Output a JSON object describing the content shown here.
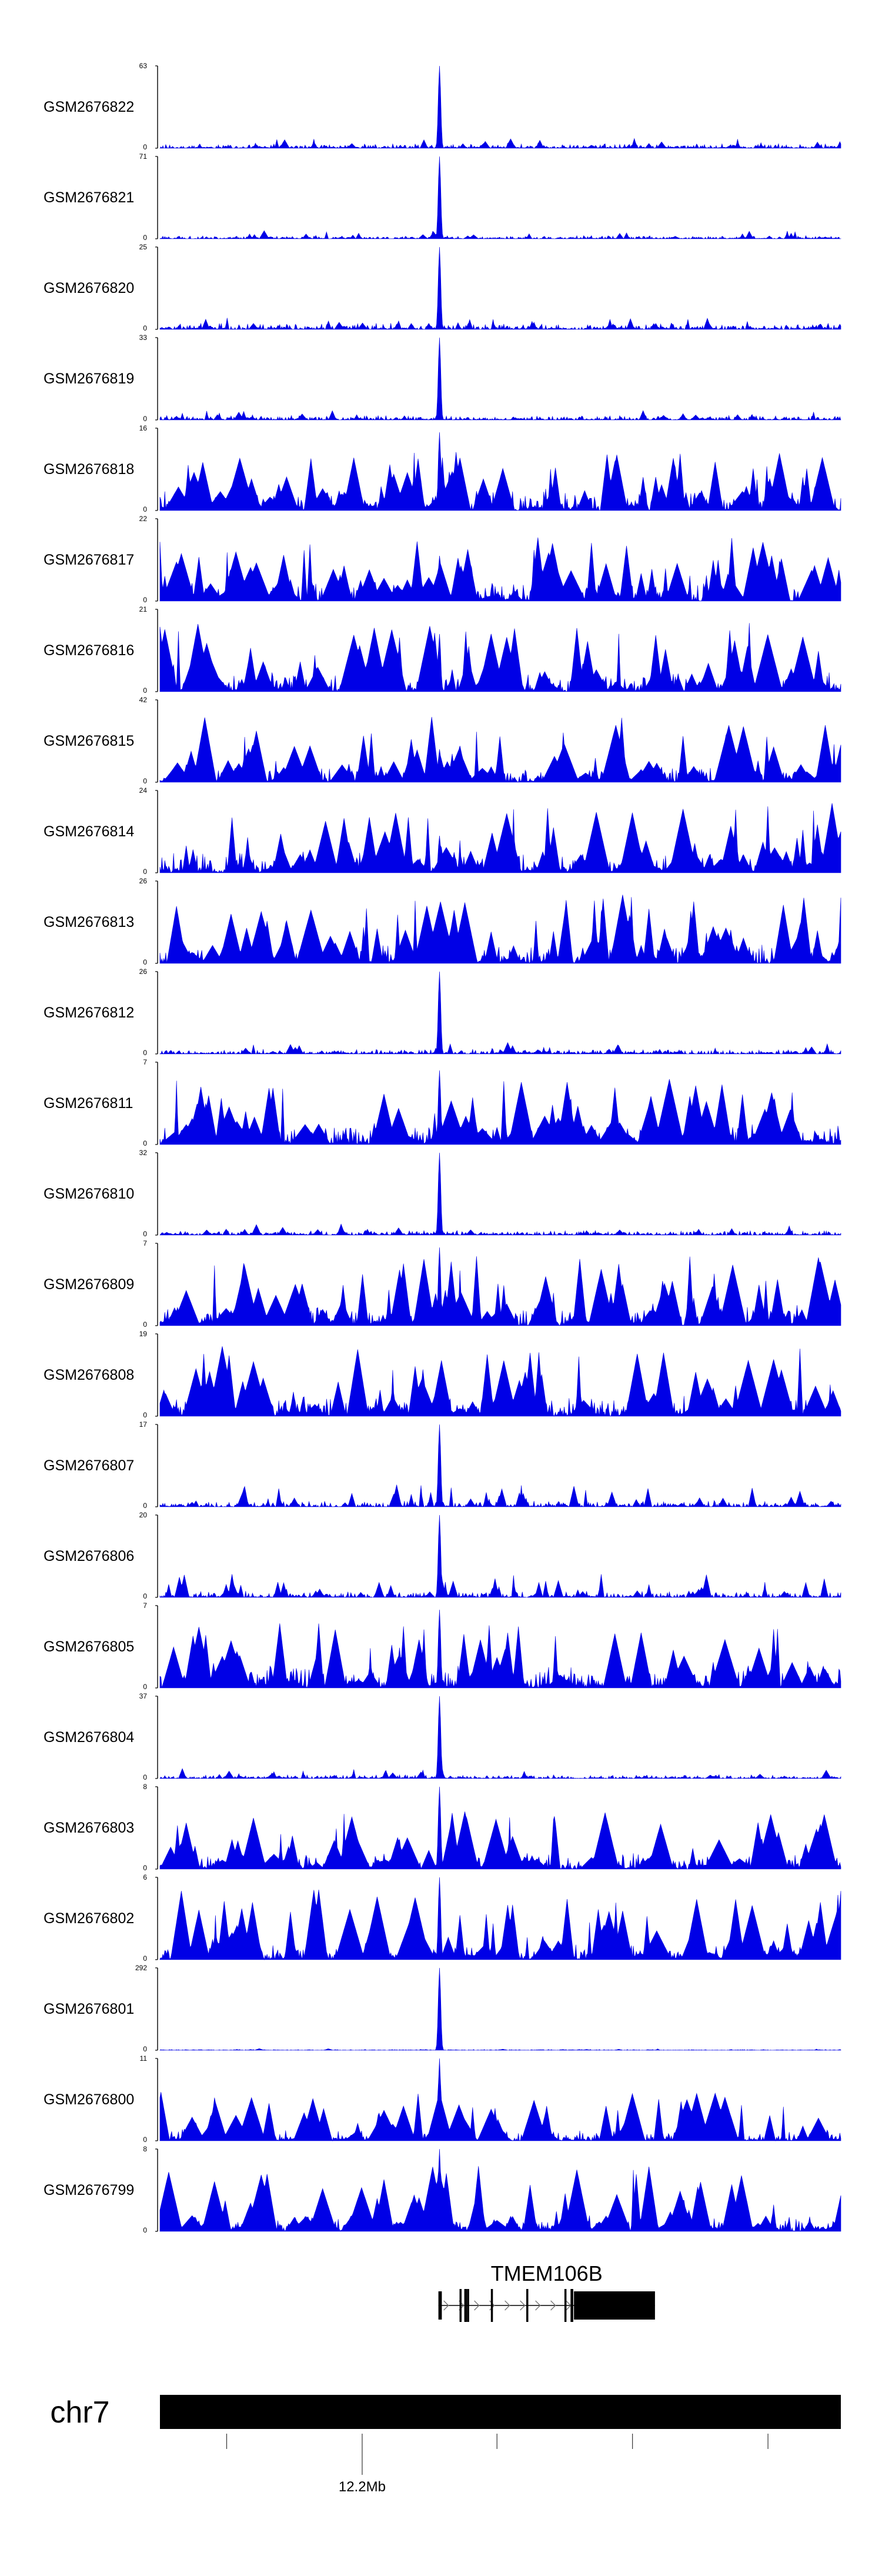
{
  "colors": {
    "signal": "#0000e6",
    "axis": "#000000",
    "gene": "#000000",
    "chrom_bar": "#000000"
  },
  "chart_data": {
    "type": "area",
    "title": "",
    "xlabel": "",
    "ylabel": "",
    "x_domain": [
      0,
      1
    ],
    "x_note": "signal position along the displayed chr7 window (fraction of window)",
    "tracks": [
      {
        "name": "GSM2676822",
        "ymax": 63,
        "ymin": 0,
        "peak_at": 0.41,
        "peak_frac": 1.0,
        "background": 0.06,
        "noise": 0.12,
        "seed": 22
      },
      {
        "name": "GSM2676821",
        "ymax": 71,
        "ymin": 0,
        "peak_at": 0.41,
        "peak_frac": 1.0,
        "background": 0.04,
        "noise": 0.1,
        "seed": 21
      },
      {
        "name": "GSM2676820",
        "ymax": 25,
        "ymin": 0,
        "peak_at": 0.41,
        "peak_frac": 1.0,
        "background": 0.08,
        "noise": 0.14,
        "seed": 20
      },
      {
        "name": "GSM2676819",
        "ymax": 33,
        "ymin": 0,
        "peak_at": 0.41,
        "peak_frac": 1.0,
        "background": 0.06,
        "noise": 0.12,
        "seed": 19
      },
      {
        "name": "GSM2676818",
        "ymax": 16,
        "ymin": 0,
        "peak_at": 0.41,
        "peak_frac": 0.95,
        "background": 0.25,
        "noise": 0.75,
        "seed": 18
      },
      {
        "name": "GSM2676817",
        "ymax": 22,
        "ymin": 0,
        "peak_at": 0.41,
        "peak_frac": 0.55,
        "background": 0.25,
        "noise": 0.8,
        "seed": 17
      },
      {
        "name": "GSM2676816",
        "ymax": 21,
        "ymin": 0,
        "peak_at": 0.41,
        "peak_frac": 0.7,
        "background": 0.25,
        "noise": 0.85,
        "seed": 16
      },
      {
        "name": "GSM2676815",
        "ymax": 42,
        "ymin": 0,
        "peak_at": 0.41,
        "peak_frac": 0.4,
        "background": 0.2,
        "noise": 0.8,
        "seed": 15
      },
      {
        "name": "GSM2676814",
        "ymax": 24,
        "ymin": 0,
        "peak_at": 0.41,
        "peak_frac": 0.45,
        "background": 0.25,
        "noise": 0.85,
        "seed": 14
      },
      {
        "name": "GSM2676813",
        "ymax": 26,
        "ymin": 0,
        "peak_at": 0.41,
        "peak_frac": 0.6,
        "background": 0.25,
        "noise": 0.85,
        "seed": 13
      },
      {
        "name": "GSM2676812",
        "ymax": 26,
        "ymin": 0,
        "peak_at": 0.41,
        "peak_frac": 1.0,
        "background": 0.06,
        "noise": 0.14,
        "seed": 12
      },
      {
        "name": "GSM2676811",
        "ymax": 7,
        "ymin": 0,
        "peak_at": 0.41,
        "peak_frac": 0.9,
        "background": 0.25,
        "noise": 0.8,
        "seed": 11
      },
      {
        "name": "GSM2676810",
        "ymax": 32,
        "ymin": 0,
        "peak_at": 0.41,
        "peak_frac": 1.0,
        "background": 0.06,
        "noise": 0.14,
        "seed": 10
      },
      {
        "name": "GSM2676809",
        "ymax": 7,
        "ymin": 0,
        "peak_at": 0.41,
        "peak_frac": 0.95,
        "background": 0.25,
        "noise": 0.85,
        "seed": 9
      },
      {
        "name": "GSM2676808",
        "ymax": 19,
        "ymin": 0,
        "peak_at": 0.41,
        "peak_frac": 0.5,
        "background": 0.25,
        "noise": 0.85,
        "seed": 8
      },
      {
        "name": "GSM2676807",
        "ymax": 17,
        "ymin": 0,
        "peak_at": 0.41,
        "peak_frac": 1.0,
        "background": 0.08,
        "noise": 0.3,
        "seed": 7
      },
      {
        "name": "GSM2676806",
        "ymax": 20,
        "ymin": 0,
        "peak_at": 0.41,
        "peak_frac": 1.0,
        "background": 0.08,
        "noise": 0.3,
        "seed": 6
      },
      {
        "name": "GSM2676805",
        "ymax": 7,
        "ymin": 0,
        "peak_at": 0.41,
        "peak_frac": 0.95,
        "background": 0.3,
        "noise": 0.8,
        "seed": 5
      },
      {
        "name": "GSM2676804",
        "ymax": 37,
        "ymin": 0,
        "peak_at": 0.41,
        "peak_frac": 1.0,
        "background": 0.05,
        "noise": 0.12,
        "seed": 4
      },
      {
        "name": "GSM2676803",
        "ymax": 8,
        "ymin": 0,
        "peak_at": 0.41,
        "peak_frac": 1.0,
        "background": 0.2,
        "noise": 0.7,
        "seed": 3
      },
      {
        "name": "GSM2676802",
        "ymax": 6,
        "ymin": 0,
        "peak_at": 0.41,
        "peak_frac": 1.0,
        "background": 0.2,
        "noise": 0.85,
        "seed": 2
      },
      {
        "name": "GSM2676801",
        "ymax": 292,
        "ymin": 0,
        "peak_at": 0.41,
        "peak_frac": 1.0,
        "background": 0.01,
        "noise": 0.02,
        "seed": 1
      },
      {
        "name": "GSM2676800",
        "ymax": 11,
        "ymin": 0,
        "peak_at": 0.41,
        "peak_frac": 1.0,
        "background": 0.15,
        "noise": 0.6,
        "seed": 100
      },
      {
        "name": "GSM2676799",
        "ymax": 8,
        "ymin": 0,
        "peak_at": 0.41,
        "peak_frac": 1.0,
        "background": 0.2,
        "noise": 0.8,
        "seed": 99
      }
    ],
    "gene": {
      "name": "TMEM106B",
      "start": 0.409,
      "end": 0.727,
      "strand": "+",
      "exons": [
        {
          "start": 0.409,
          "end": 0.414,
          "coding": true
        },
        {
          "start": 0.44,
          "end": 0.443,
          "coding": false
        },
        {
          "start": 0.447,
          "end": 0.451,
          "coding": false
        },
        {
          "start": 0.451,
          "end": 0.454,
          "coding": false
        },
        {
          "start": 0.486,
          "end": 0.489,
          "coding": false
        },
        {
          "start": 0.538,
          "end": 0.541,
          "coding": false
        },
        {
          "start": 0.594,
          "end": 0.597,
          "coding": false
        },
        {
          "start": 0.603,
          "end": 0.607,
          "coding": false
        },
        {
          "start": 0.608,
          "end": 0.727,
          "coding": true
        }
      ]
    },
    "chromosome": {
      "name": "chr7",
      "ticks": [
        0.098,
        0.297,
        0.495,
        0.694,
        0.893
      ],
      "labeled_tick": {
        "at": 0.297,
        "label": "12.2Mb"
      }
    }
  }
}
